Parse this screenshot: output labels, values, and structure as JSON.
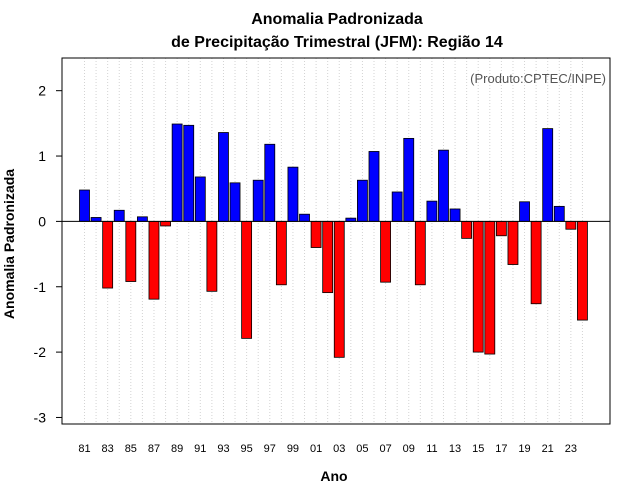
{
  "chart_data": {
    "type": "bar",
    "title": "Anomalia Padronizada",
    "subtitle": "de Precipitação Trimestral (JFM): Região 14",
    "xlabel": "Ano",
    "ylabel": "Anomalia Padronizada",
    "annotation": "(Produto:CPTEC/INPE)",
    "ylim": [
      -3.1,
      2.5
    ],
    "yticks": [
      2,
      1,
      0,
      -1,
      -2,
      -3
    ],
    "ytick_labels": [
      "2",
      "1",
      "0",
      "-1",
      "-2",
      "-3"
    ],
    "xtick_labels": [
      "81",
      "83",
      "85",
      "87",
      "89",
      "91",
      "93",
      "95",
      "97",
      "99",
      "01",
      "03",
      "05",
      "07",
      "09",
      "11",
      "13",
      "15",
      "17",
      "19",
      "21",
      "23"
    ],
    "grid": true,
    "positive_color": "#0000ff",
    "negative_color": "#ff0000",
    "categories": [
      "1981",
      "1982",
      "1983",
      "1984",
      "1985",
      "1986",
      "1987",
      "1988",
      "1989",
      "1990",
      "1991",
      "1992",
      "1993",
      "1994",
      "1995",
      "1996",
      "1997",
      "1998",
      "1999",
      "2000",
      "2001",
      "2002",
      "2003",
      "2004",
      "2005",
      "2006",
      "2007",
      "2008",
      "2009",
      "2010",
      "2011",
      "2012",
      "2013",
      "2014",
      "2015",
      "2016",
      "2017",
      "2018",
      "2019",
      "2020",
      "2021",
      "2022",
      "2023",
      "2024"
    ],
    "values": [
      0.48,
      0.06,
      -1.02,
      0.17,
      -0.92,
      0.07,
      -1.19,
      -0.07,
      1.49,
      1.47,
      0.68,
      -1.07,
      1.36,
      0.59,
      -1.79,
      0.63,
      1.18,
      -0.97,
      0.83,
      0.11,
      -0.4,
      -1.09,
      -2.08,
      0.05,
      0.63,
      1.07,
      -0.93,
      0.45,
      1.27,
      -0.97,
      0.31,
      1.09,
      0.19,
      -0.26,
      -2.0,
      -2.03,
      -0.22,
      -0.66,
      0.3,
      -1.26,
      1.42,
      0.23,
      -0.12,
      -1.51
    ]
  }
}
